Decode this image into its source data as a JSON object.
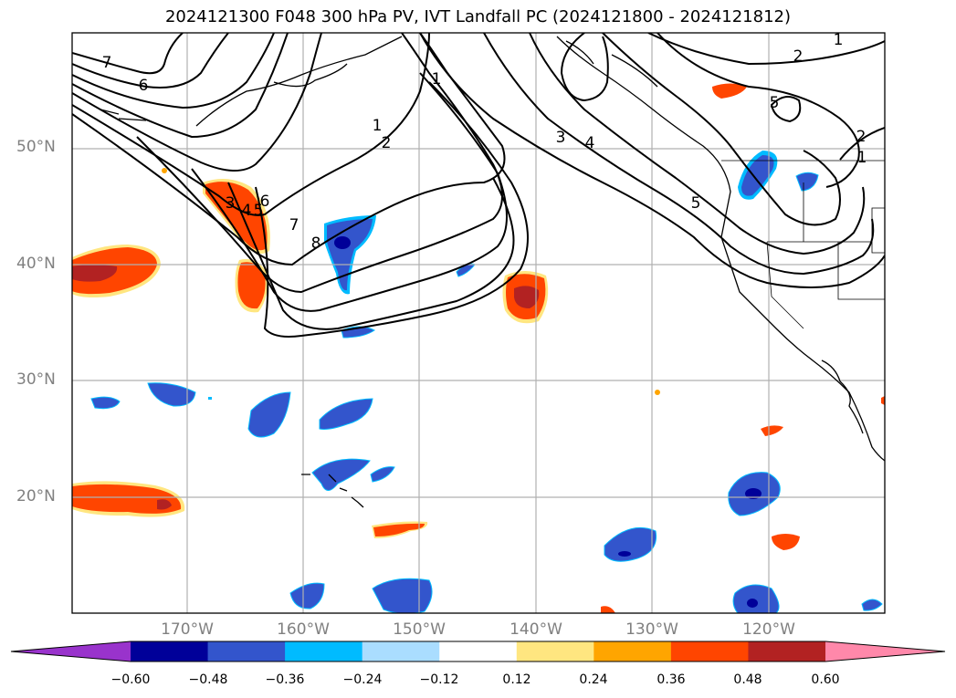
{
  "title": "2024121300 F048 300 hPa PV, IVT Landfall PC (2024121800 - 2024121812)",
  "map": {
    "lat_ticks": [
      "50°N",
      "40°N",
      "30°N",
      "20°N"
    ],
    "lon_ticks": [
      "170°W",
      "160°W",
      "150°W",
      "140°W",
      "130°W",
      "120°W"
    ],
    "contour_labels": [
      "7",
      "6",
      "1",
      "2",
      "3",
      "4",
      "5",
      "6",
      "7",
      "8",
      "1",
      "2",
      "5",
      "4",
      "3",
      "5",
      "2",
      "1",
      "1"
    ],
    "colors": {
      "contour": "#000000",
      "grid": "#b0b0b0",
      "coast": "#000000"
    }
  },
  "colorbar": {
    "ticks": [
      "−0.60",
      "−0.48",
      "−0.36",
      "−0.24",
      "−0.12",
      "0.12",
      "0.24",
      "0.36",
      "0.48",
      "0.60"
    ],
    "colors": [
      "#9933cc",
      "#000099",
      "#3355cc",
      "#00bbff",
      "#aaddff",
      "#ffffff",
      "#ffe680",
      "#ffa500",
      "#ff4500",
      "#b22222",
      "#ff88aa"
    ]
  }
}
